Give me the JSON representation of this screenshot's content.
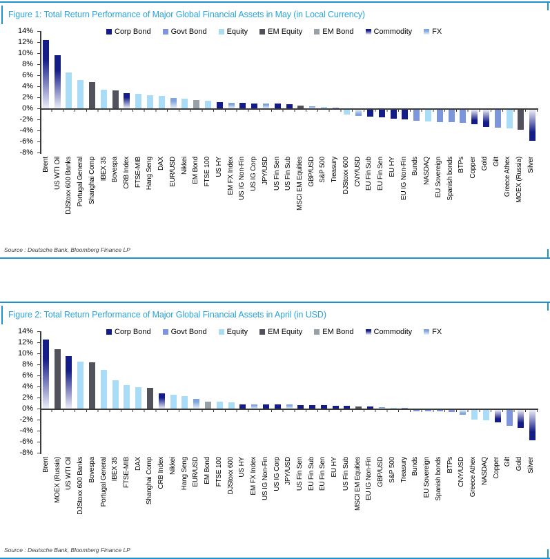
{
  "colors": {
    "corp_bond": "#141c87",
    "govt_bond": "#7d96db",
    "equity": "#a9dcf6",
    "em_equity": "#52525c",
    "em_bond": "#9aa0a8",
    "commodity_dark": "#141c87",
    "commodity_light": "#eceef8",
    "fx_dark": "#7fa3dc",
    "fx_light": "#e6f0fb",
    "title_accent": "#29a3dc",
    "border_accent": "#1a93cf",
    "axis": "#3a3a3a"
  },
  "chart_data": [
    {
      "type": "bar",
      "title": "Figure 1: Total Return Performance of Major Global Financial Assets in May (in Local Currency)",
      "source": "Source : Deutsche Bank, Bloomberg Finance LP",
      "xlabel": "",
      "ylabel": "",
      "ylim": [
        -8,
        14
      ],
      "ytick_step": 2,
      "ytick_format": "percent",
      "grid": false,
      "legend_position": "top",
      "legend": [
        "Corp Bond",
        "Govt Bond",
        "Equity",
        "EM Equity",
        "EM Bond",
        "Commodity",
        "FX"
      ],
      "categories": [
        "Brent",
        "US WTI Oil",
        "DJStoxx 600 Banks",
        "Portugal General",
        "Shanghai Comp",
        "IBEX 35",
        "Bovespa",
        "CRB Index",
        "FTSE-MIB",
        "Hang Seng",
        "DAX",
        "EUR/USD",
        "Nikkei",
        "EM Bond",
        "FTSE 100",
        "US HY",
        "EM FX Index",
        "US IG Non-Fin",
        "US IG Corp",
        "JPY/USD",
        "US Fin Sen",
        "US Fin Sub",
        "MSCI EM Equities",
        "GBP/USD",
        "S&P 500",
        "Treasury",
        "DJStoxx 600",
        "CNY/USD",
        "EU Fin Sub",
        "EU Fin Sen",
        "EU HY",
        "EU IG Non-Fin",
        "Bunds",
        "NASDAQ",
        "EU Sovereign",
        "Spanish bonds",
        "BTPs",
        "Copper",
        "Gold",
        "Gilt",
        "Greece Athex",
        "MOEX (Russia)",
        "Silver"
      ],
      "values": [
        12.4,
        9.6,
        6.5,
        5.1,
        4.8,
        3.4,
        3.3,
        2.8,
        2.6,
        2.4,
        2.2,
        1.9,
        1.7,
        1.5,
        1.4,
        1.1,
        1.0,
        1.0,
        0.9,
        0.9,
        0.9,
        0.8,
        0.5,
        0.4,
        0.3,
        0.1,
        -0.9,
        -1.1,
        -1.3,
        -1.4,
        -1.6,
        -1.8,
        -2.0,
        -2.1,
        -2.2,
        -2.3,
        -2.4,
        -2.6,
        -3.1,
        -3.3,
        -3.4,
        -3.6,
        -5.6
      ],
      "classes": [
        "Commodity",
        "Commodity",
        "Equity",
        "Equity",
        "EM Equity",
        "Equity",
        "EM Equity",
        "Commodity",
        "Equity",
        "Equity",
        "Equity",
        "FX",
        "Equity",
        "EM Bond",
        "Equity",
        "Corp Bond",
        "FX",
        "Corp Bond",
        "Corp Bond",
        "FX",
        "Corp Bond",
        "Corp Bond",
        "EM Equity",
        "FX",
        "Equity",
        "Govt Bond",
        "Equity",
        "FX",
        "Corp Bond",
        "Corp Bond",
        "Corp Bond",
        "Corp Bond",
        "Govt Bond",
        "Equity",
        "Govt Bond",
        "Govt Bond",
        "Govt Bond",
        "Commodity",
        "Commodity",
        "Govt Bond",
        "Equity",
        "EM Equity",
        "Commodity"
      ]
    },
    {
      "type": "bar",
      "title": "Figure 2: Total Return Performance of Major Global Financial Assets in April (in USD)",
      "source": "Source : Deutsche Bank, Bloomberg Finance LP",
      "xlabel": "",
      "ylabel": "",
      "ylim": [
        -8,
        14
      ],
      "ytick_step": 2,
      "ytick_format": "percent",
      "grid": false,
      "legend_position": "top",
      "legend": [
        "Corp Bond",
        "Govt Bond",
        "Equity",
        "EM Equity",
        "EM Bond",
        "Commodity",
        "FX"
      ],
      "categories": [
        "Brent",
        "MOEX (Russia)",
        "US WTI Oil",
        "DJStoxx 600 Banks",
        "Bovespa",
        "Portugal General",
        "IBEX 35",
        "FTSE-MIB",
        "DAX",
        "Shanghai Comp",
        "CRB Index",
        "Nikkei",
        "Hang Seng",
        "EUR/USD",
        "EM Bond",
        "FTSE 100",
        "DJStoxx 600",
        "US HY",
        "EM FX Index",
        "US IG Non-Fin",
        "US IG Corp",
        "JPY/USD",
        "US Fin Sen",
        "EU Fin Sub",
        "EU Fin Sen",
        "EU HY",
        "US Fin Sub",
        "MSCI EM Equities",
        "EU IG Non-Fin",
        "GBP/USD",
        "S&P 500",
        "Treasury",
        "Bunds",
        "EU Sovereign",
        "Spanish bonds",
        "BTPs",
        "CNY/USD",
        "Greece Athex",
        "NASDAQ",
        "Copper",
        "Gilt",
        "Gold",
        "Silver"
      ],
      "values": [
        12.5,
        10.7,
        9.5,
        8.5,
        8.4,
        7.0,
        5.1,
        4.2,
        3.9,
        3.8,
        2.7,
        2.5,
        2.2,
        1.7,
        1.3,
        1.3,
        1.1,
        0.8,
        0.8,
        0.7,
        0.7,
        0.7,
        0.6,
        0.6,
        0.6,
        0.5,
        0.5,
        0.4,
        0.4,
        0.2,
        0.1,
        0.1,
        -0.2,
        -0.3,
        -0.3,
        -0.4,
        -0.9,
        -1.7,
        -1.9,
        -2.3,
        -2.9,
        -3.2,
        -5.5
      ],
      "classes": [
        "Commodity",
        "EM Equity",
        "Commodity",
        "Equity",
        "EM Equity",
        "Equity",
        "Equity",
        "Equity",
        "Equity",
        "EM Equity",
        "Commodity",
        "Equity",
        "Equity",
        "FX",
        "EM Bond",
        "Equity",
        "Equity",
        "Corp Bond",
        "FX",
        "Corp Bond",
        "Corp Bond",
        "FX",
        "Corp Bond",
        "Corp Bond",
        "Corp Bond",
        "Corp Bond",
        "Corp Bond",
        "EM Equity",
        "Corp Bond",
        "FX",
        "Equity",
        "Govt Bond",
        "Govt Bond",
        "Govt Bond",
        "Govt Bond",
        "Govt Bond",
        "FX",
        "Equity",
        "Equity",
        "Commodity",
        "Govt Bond",
        "Commodity",
        "Commodity"
      ]
    }
  ]
}
